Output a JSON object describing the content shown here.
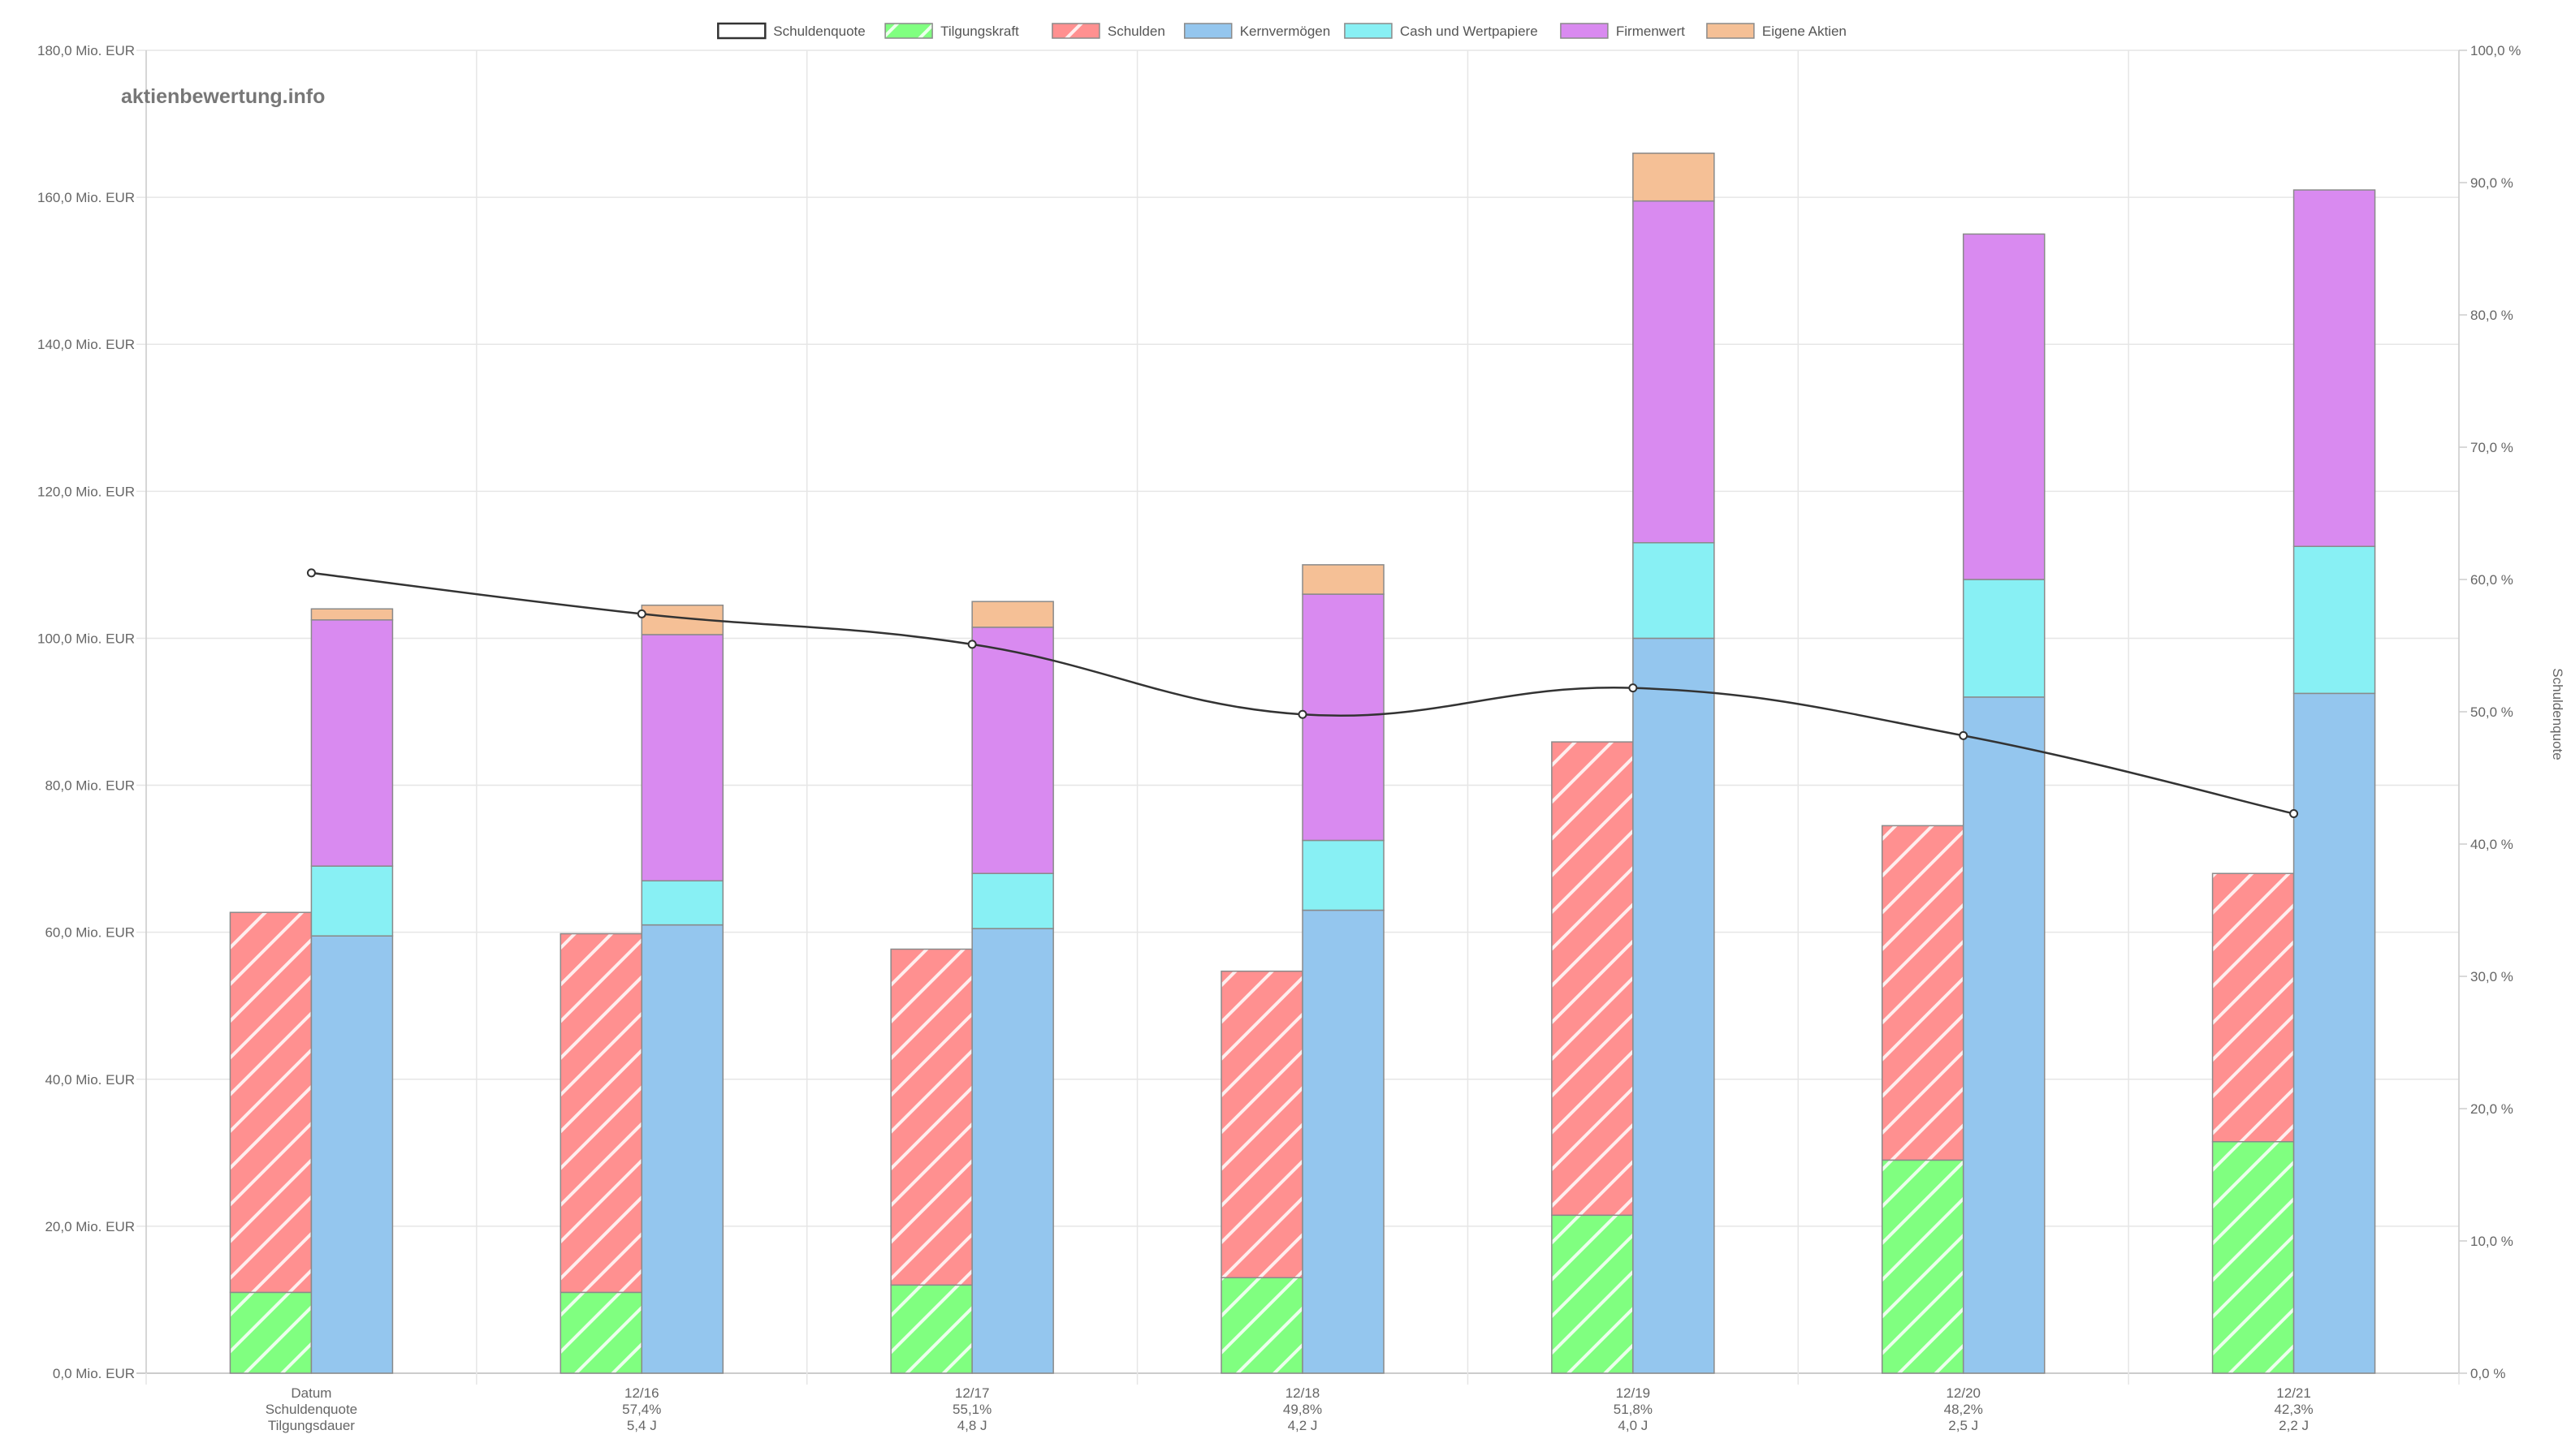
{
  "watermark": "aktienbewertung.info",
  "chart_data": {
    "type": "bar",
    "categories": [
      "Datum",
      "12/16",
      "12/17",
      "12/18",
      "12/19",
      "12/20",
      "12/21"
    ],
    "category_sublabels": [
      [
        "Schuldenquote",
        "Tilgungsdauer"
      ],
      [
        "57,4%",
        "5,4 J"
      ],
      [
        "55,1%",
        "4,8 J"
      ],
      [
        "49,8%",
        "4,2 J"
      ],
      [
        "51,8%",
        "4,0 J"
      ],
      [
        "48,2%",
        "2,5 J"
      ],
      [
        "42,3%",
        "2,2 J"
      ]
    ],
    "legend": [
      {
        "name": "Schuldenquote",
        "color": "#ffffff",
        "border": "#333333"
      },
      {
        "name": "Tilgungskraft",
        "color": "#80ff80",
        "hatch": true
      },
      {
        "name": "Schulden",
        "color": "#ff9090",
        "hatch": true
      },
      {
        "name": "Kernvermögen",
        "color": "#94c6ee"
      },
      {
        "name": "Cash und Wertpapiere",
        "color": "#88f0f4"
      },
      {
        "name": "Firmenwert",
        "color": "#d98af0"
      },
      {
        "name": "Eigene Aktien",
        "color": "#f5c096"
      }
    ],
    "legend_position": "top",
    "stack_debt": {
      "Tilgungskraft": [
        11,
        11,
        12,
        13,
        21.5,
        29,
        31.5
      ],
      "Schulden": [
        51.7,
        48.8,
        45.7,
        41.7,
        64.4,
        45.5,
        36.5
      ]
    },
    "stack_assets": {
      "Kernvermögen": [
        59.5,
        61,
        60.5,
        63,
        100,
        92,
        92.5
      ],
      "Cash und Wertpapiere": [
        9.5,
        6,
        7.5,
        9.5,
        13,
        16,
        20
      ],
      "Firmenwert": [
        33.5,
        33.5,
        33.5,
        33.5,
        46.5,
        47,
        48.5
      ],
      "Eigene Aktien": [
        1.5,
        4,
        3.5,
        4,
        6.5,
        0,
        0
      ]
    },
    "line": {
      "name": "Schuldenquote",
      "values": [
        60.5,
        57.4,
        55.1,
        49.8,
        51.8,
        48.2,
        42.3
      ]
    },
    "y_left": {
      "min": 0,
      "max": 180,
      "step": 20,
      "tick_labels": [
        "0,0 Mio. EUR",
        "20,0 Mio. EUR",
        "40,0 Mio. EUR",
        "60,0 Mio. EUR",
        "80,0 Mio. EUR",
        "100,0 Mio. EUR",
        "120,0 Mio. EUR",
        "140,0 Mio. EUR",
        "160,0 Mio. EUR",
        "180,0 Mio. EUR"
      ]
    },
    "y_right": {
      "min": 0,
      "max": 100,
      "step": 10,
      "title": "Schuldenquote",
      "tick_labels": [
        "0,0 %",
        "10,0 %",
        "20,0 %",
        "30,0 %",
        "40,0 %",
        "50,0 %",
        "60,0 %",
        "70,0 %",
        "80,0 %",
        "90,0 %",
        "100,0 %"
      ]
    },
    "grid": true
  }
}
